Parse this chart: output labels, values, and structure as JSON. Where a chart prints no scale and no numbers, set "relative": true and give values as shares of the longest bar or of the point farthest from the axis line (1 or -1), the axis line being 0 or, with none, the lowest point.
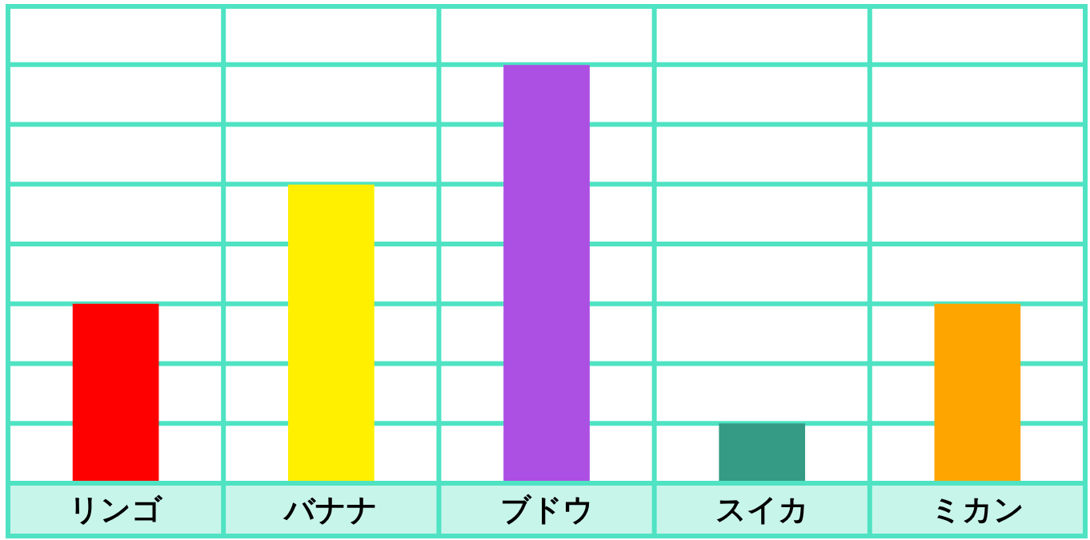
{
  "chart_data": {
    "type": "bar",
    "relative": true,
    "grid": true,
    "categories": [
      "リンゴ",
      "バナナ",
      "ブドウ",
      "スイカ",
      "ミカン"
    ],
    "values": [
      0.429,
      0.714,
      1,
      0.143,
      0.429
    ],
    "colors": [
      "#ff0000",
      "#fff000",
      "#ac4fe3",
      "#359b84",
      "#ffa500"
    ]
  }
}
